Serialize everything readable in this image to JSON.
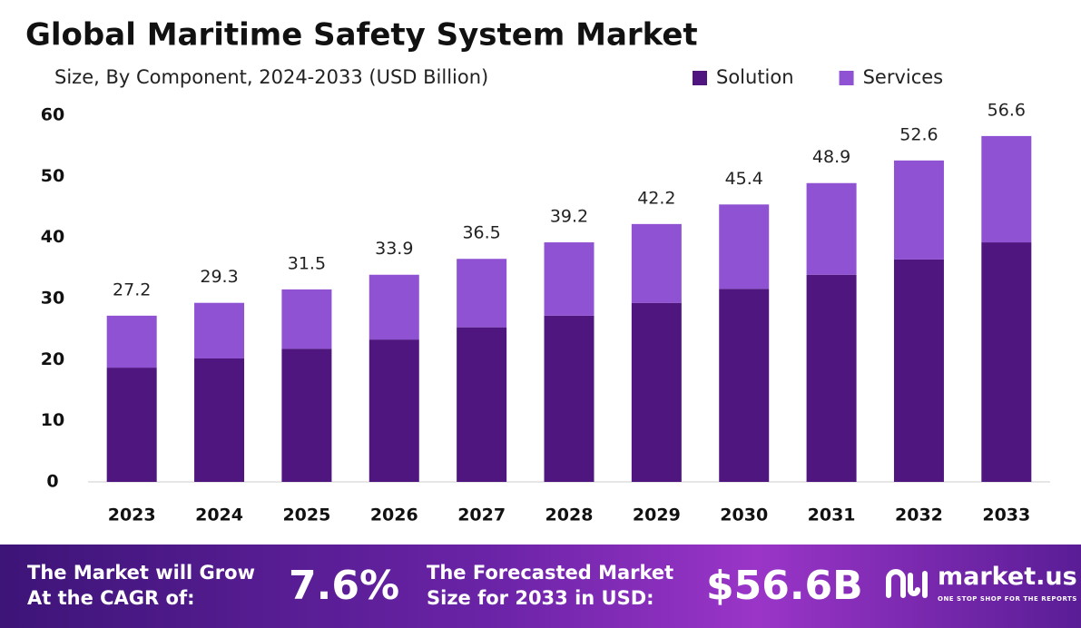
{
  "chart_data": {
    "type": "stacked-bar",
    "title": "Global Maritime Safety System Market",
    "subtitle": "Size, By Component, 2024-2033 (USD Billion)",
    "categories": [
      "2023",
      "2024",
      "2025",
      "2026",
      "2027",
      "2028",
      "2029",
      "2030",
      "2031",
      "2032",
      "2033"
    ],
    "series": [
      {
        "name": "Solution",
        "color": "#4f1680",
        "values": [
          18.7,
          20.2,
          21.8,
          23.3,
          25.3,
          27.2,
          29.3,
          31.6,
          33.9,
          36.4,
          39.2
        ]
      },
      {
        "name": "Services",
        "color": "#8f52d2",
        "values": [
          8.5,
          9.1,
          9.7,
          10.6,
          11.2,
          12.0,
          12.9,
          13.8,
          15.0,
          16.2,
          17.4
        ]
      }
    ],
    "totals": [
      27.2,
      29.3,
      31.5,
      33.9,
      36.5,
      39.2,
      42.2,
      45.4,
      48.9,
      52.6,
      56.6
    ],
    "ylim": [
      0,
      60
    ],
    "yticks": [
      0,
      10,
      20,
      30,
      40,
      50,
      60
    ],
    "grid": false,
    "legend": "top-right"
  },
  "footer": {
    "cagr_text": [
      "The Market will Grow",
      "At the CAGR of:"
    ],
    "cagr_value": "7.6%",
    "forecast_text": [
      "The Forecasted Market",
      "Size for 2033 in USD:"
    ],
    "forecast_value": "$56.6B",
    "brand": "market.us",
    "tagline": "ONE STOP SHOP FOR THE REPORTS"
  }
}
